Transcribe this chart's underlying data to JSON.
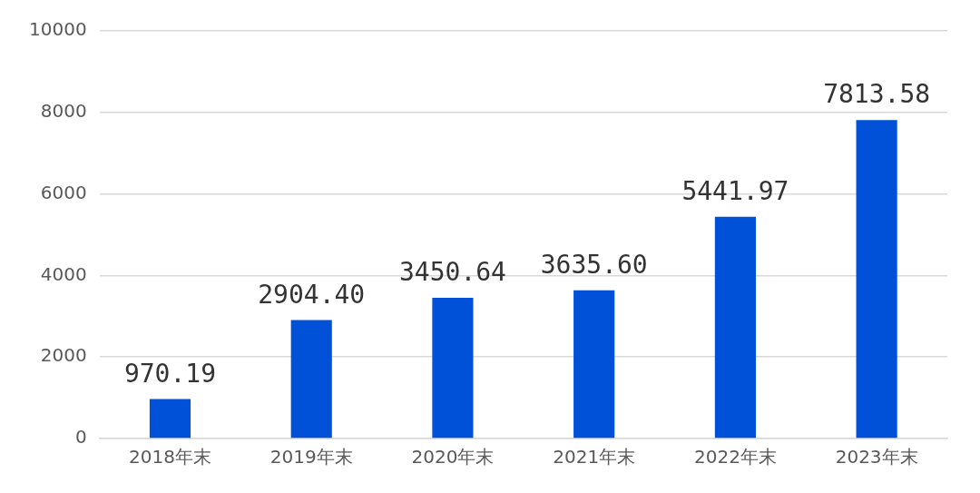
{
  "chart_data": {
    "type": "bar",
    "categories": [
      "2018年末",
      "2019年末",
      "2020年末",
      "2021年末",
      "2022年末",
      "2023年末"
    ],
    "values": [
      970.19,
      2904.4,
      3450.64,
      3635.6,
      5441.97,
      7813.58
    ],
    "value_labels": [
      "970.19",
      "2904.40",
      "3450.64",
      "3635.60",
      "5441.97",
      "7813.58"
    ],
    "color": "#0050d8",
    "ylim": [
      0,
      10000
    ],
    "yticks": [
      0,
      2000,
      4000,
      6000,
      8000,
      10000
    ],
    "grid": "y",
    "legend": false
  }
}
